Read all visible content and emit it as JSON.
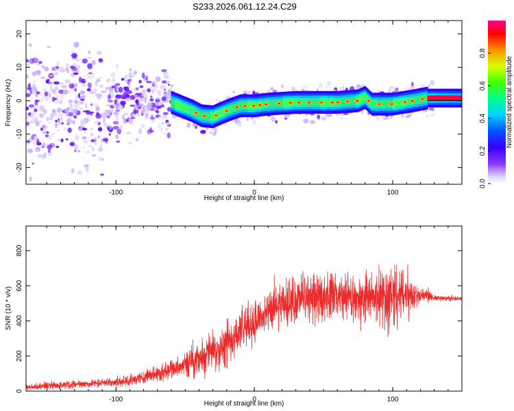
{
  "title": "S233.2026.061.12.24.C29",
  "colormap": [
    "#7a00ff",
    "#3000ff",
    "#0060ff",
    "#00d8ff",
    "#00ff80",
    "#40ff00",
    "#d8ff00",
    "#ffd000",
    "#ff6000",
    "#ff0040",
    "#ff0090"
  ],
  "chart_data": [
    {
      "type": "heatmap",
      "title": "S233.2026.061.12.24.C29",
      "xlabel": "Height of straight line (km)",
      "ylabel": "Frequency (Hz)",
      "xlim": [
        -165,
        150
      ],
      "ylim": [
        -25,
        24
      ],
      "xticks": [
        -100,
        0,
        100
      ],
      "yticks": [
        -20,
        -10,
        0,
        10,
        20
      ],
      "ridge_x": [
        -165,
        -120,
        -90,
        -60,
        -45,
        -38,
        -30,
        -20,
        -10,
        0,
        10,
        30,
        60,
        75,
        80,
        85,
        100,
        115,
        125,
        150
      ],
      "ridge_freq": [
        -3,
        -2,
        -1,
        -0.5,
        -3,
        -4.5,
        -4.8,
        -3,
        -1.5,
        -1.5,
        -1,
        -0.5,
        -0.5,
        0,
        1,
        -1,
        -1,
        0,
        0.8,
        0.8
      ],
      "colorbar": {
        "label": "Normalized spectral amplitude",
        "range": [
          0,
          1
        ],
        "ticks": [
          "0.0",
          "0.2",
          "0.4",
          "0.6",
          "0.8"
        ]
      }
    },
    {
      "type": "line",
      "xlabel": "Height of straight line (km)",
      "ylabel": "SNR (10 * v/v)",
      "xlim": [
        -165,
        150
      ],
      "ylim": [
        0,
        940
      ],
      "xticks": [
        -100,
        0,
        100
      ],
      "yticks": [
        0,
        200,
        400,
        600,
        800
      ],
      "series": [
        {
          "name": "SNR",
          "color": "#ee2a2a",
          "envelope_x": [
            -165,
            -150,
            -130,
            -110,
            -90,
            -70,
            -50,
            -40,
            -30,
            -20,
            -10,
            0,
            10,
            20,
            30,
            45,
            60,
            75,
            90,
            100,
            110,
            120,
            130,
            150
          ],
          "envelope_mean": [
            20,
            30,
            40,
            45,
            60,
            100,
            150,
            180,
            230,
            280,
            340,
            400,
            440,
            480,
            520,
            540,
            540,
            520,
            540,
            520,
            560,
            550,
            530,
            525
          ],
          "envelope_spread": [
            20,
            30,
            30,
            30,
            40,
            60,
            90,
            130,
            150,
            170,
            170,
            170,
            150,
            170,
            180,
            180,
            170,
            180,
            200,
            300,
            200,
            60,
            25,
            15
          ]
        }
      ]
    }
  ]
}
